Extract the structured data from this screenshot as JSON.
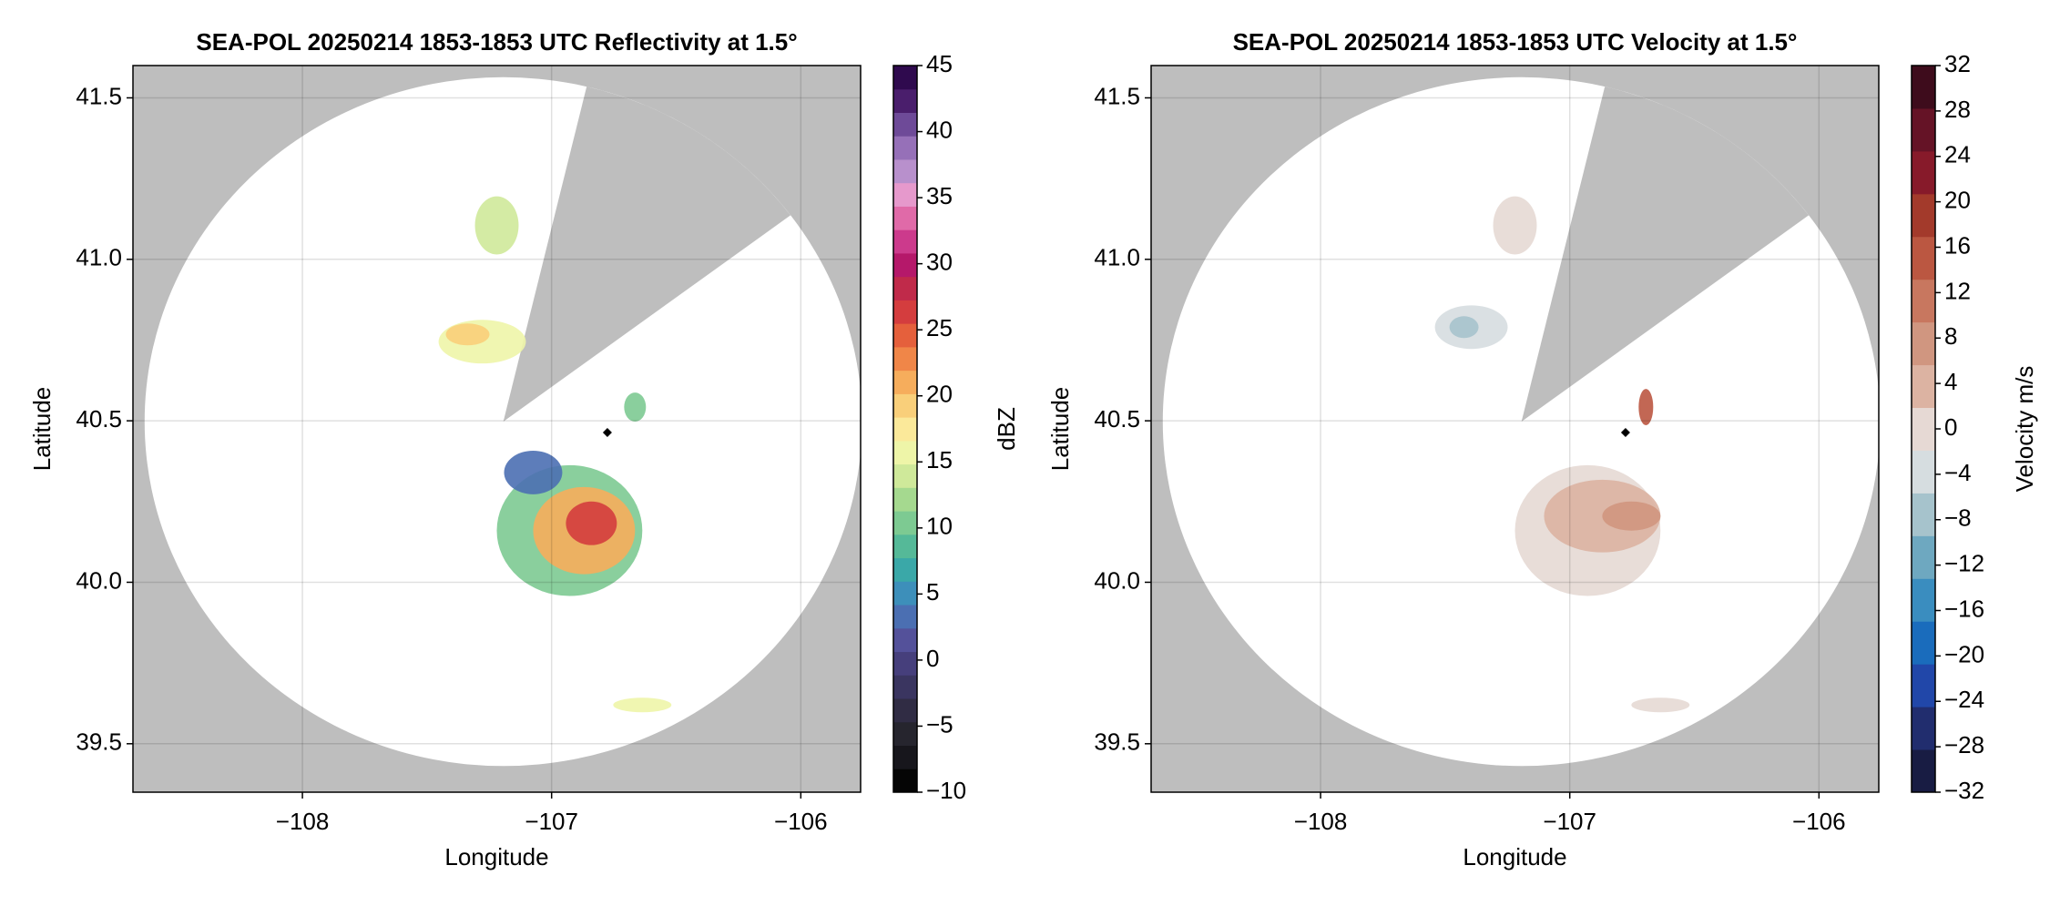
{
  "chart_data": [
    {
      "type": "map",
      "title": "SEA-POL 20250214 1853-1853 UTC Reflectivity at 1.5°",
      "xlabel": "Longitude",
      "ylabel": "Latitude",
      "xlim": [
        -108.68,
        -105.76
      ],
      "ylim": [
        39.35,
        41.6
      ],
      "xticks": [
        {
          "value": -108,
          "label": "−108"
        },
        {
          "value": -107,
          "label": "−107"
        },
        {
          "value": -106,
          "label": "−106"
        }
      ],
      "yticks": [
        39.5,
        {
          "value": 40,
          "label": "40.0"
        },
        40.5,
        {
          "value": 41,
          "label": "41.0"
        },
        41.5
      ],
      "grid": true,
      "colorbar": {
        "label": "dBZ",
        "lim": [
          -10,
          45
        ],
        "ticks": [
          {
            "value": -10,
            "label": "−10"
          },
          {
            "value": -5,
            "label": "−5"
          },
          0,
          5,
          10,
          15,
          20,
          25,
          30,
          35,
          40,
          45
        ],
        "colors": [
          "#050505",
          "#17161c",
          "#26252e",
          "#302c44",
          "#3a3560",
          "#463f7c",
          "#54519a",
          "#4b6fb2",
          "#3d8fba",
          "#3aa8a8",
          "#55b998",
          "#7dca92",
          "#a5d98f",
          "#cfe99a",
          "#eef5a8",
          "#fbe99a",
          "#f9cf7a",
          "#f6ad5c",
          "#f08648",
          "#e5603c",
          "#d43d3e",
          "#c02a4a",
          "#b5186a",
          "#cc3a8c",
          "#e06aa8",
          "#e699cc",
          "#b890cc",
          "#9670b8",
          "#6e4a98",
          "#4a1e6c",
          "#2f0a4e"
        ]
      }
    },
    {
      "type": "map",
      "title": "SEA-POL 20250214 1853-1853 UTC Velocity at 1.5°",
      "xlabel": "Longitude",
      "ylabel": "Latitude",
      "xlim": [
        -108.68,
        -105.76
      ],
      "ylim": [
        39.35,
        41.6
      ],
      "xticks": [
        {
          "value": -108,
          "label": "−108"
        },
        {
          "value": -107,
          "label": "−107"
        },
        {
          "value": -106,
          "label": "−106"
        }
      ],
      "yticks": [
        39.5,
        {
          "value": 40,
          "label": "40.0"
        },
        40.5,
        {
          "value": 41,
          "label": "41.0"
        },
        41.5
      ],
      "grid": true,
      "colorbar": {
        "label": "Velocity m/s",
        "lim": [
          -32,
          32
        ],
        "ticks": [
          {
            "value": -32,
            "label": "−32"
          },
          {
            "value": -28,
            "label": "−28"
          },
          {
            "value": -24,
            "label": "−24"
          },
          {
            "value": -20,
            "label": "−20"
          },
          {
            "value": -16,
            "label": "−16"
          },
          {
            "value": -12,
            "label": "−12"
          },
          {
            "value": -8,
            "label": "−8"
          },
          {
            "value": -4,
            "label": "−4"
          },
          0,
          4,
          8,
          12,
          16,
          20,
          24,
          28,
          32
        ],
        "colors": [
          "#181c43",
          "#212d6e",
          "#2147a9",
          "#1a6cbc",
          "#3a8dbf",
          "#6ea8c0",
          "#a6c3cc",
          "#d6dde0",
          "#e6d9d4",
          "#dcb3a2",
          "#d09680",
          "#c8775f",
          "#bb5741",
          "#a33a2b",
          "#871a2a",
          "#651326",
          "#3e0c1c"
        ]
      }
    }
  ]
}
